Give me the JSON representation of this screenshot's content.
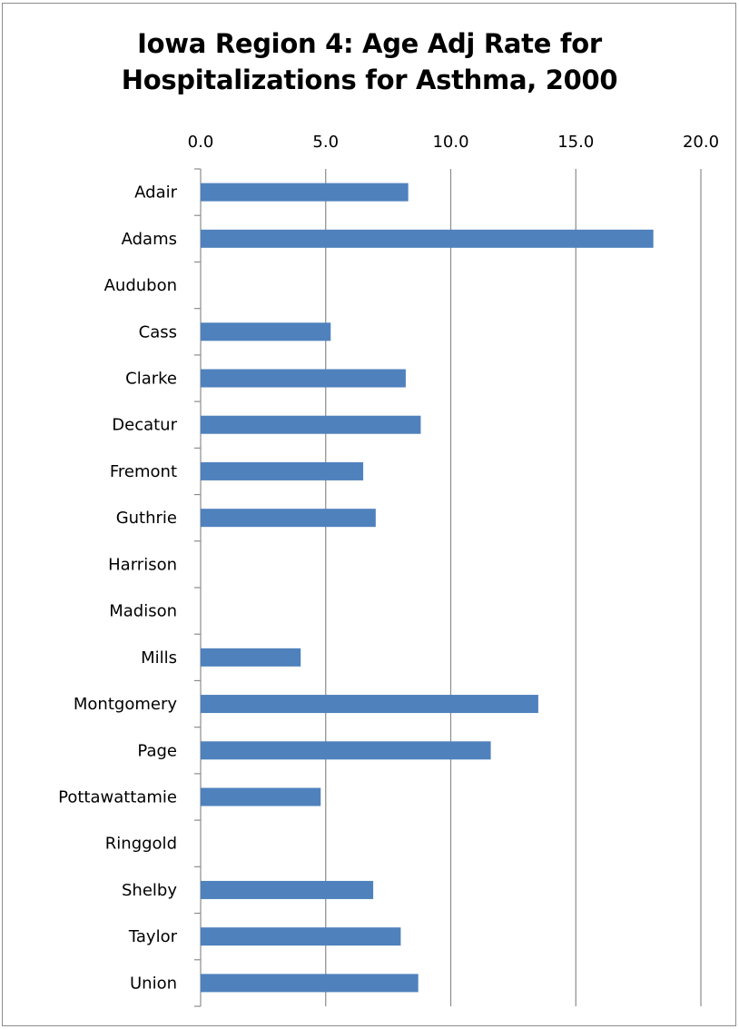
{
  "chart_data": {
    "type": "bar",
    "orientation": "horizontal",
    "title_lines": [
      "Iowa Region 4: Age Adj Rate for",
      "Hospitalizations for Asthma, 2000"
    ],
    "xlabel": "",
    "ylabel": "",
    "xlim": [
      0,
      20
    ],
    "x_ticks": [
      "0.0",
      "5.0",
      "10.0",
      "15.0",
      "20.0"
    ],
    "x_axis_position": "top",
    "grid": true,
    "legend": "none",
    "bar_color": "#4f81bd",
    "categories": [
      "Adair",
      "Adams",
      "Audubon",
      "Cass",
      "Clarke",
      "Decatur",
      "Fremont",
      "Guthrie",
      "Harrison",
      "Madison",
      "Mills",
      "Montgomery",
      "Page",
      "Pottawattamie",
      "Ringgold",
      "Shelby",
      "Taylor",
      "Union"
    ],
    "values": [
      8.3,
      18.1,
      0,
      5.2,
      8.2,
      8.8,
      6.5,
      7.0,
      0,
      0,
      4.0,
      13.5,
      11.6,
      4.8,
      0,
      6.9,
      8.0,
      8.7
    ]
  }
}
